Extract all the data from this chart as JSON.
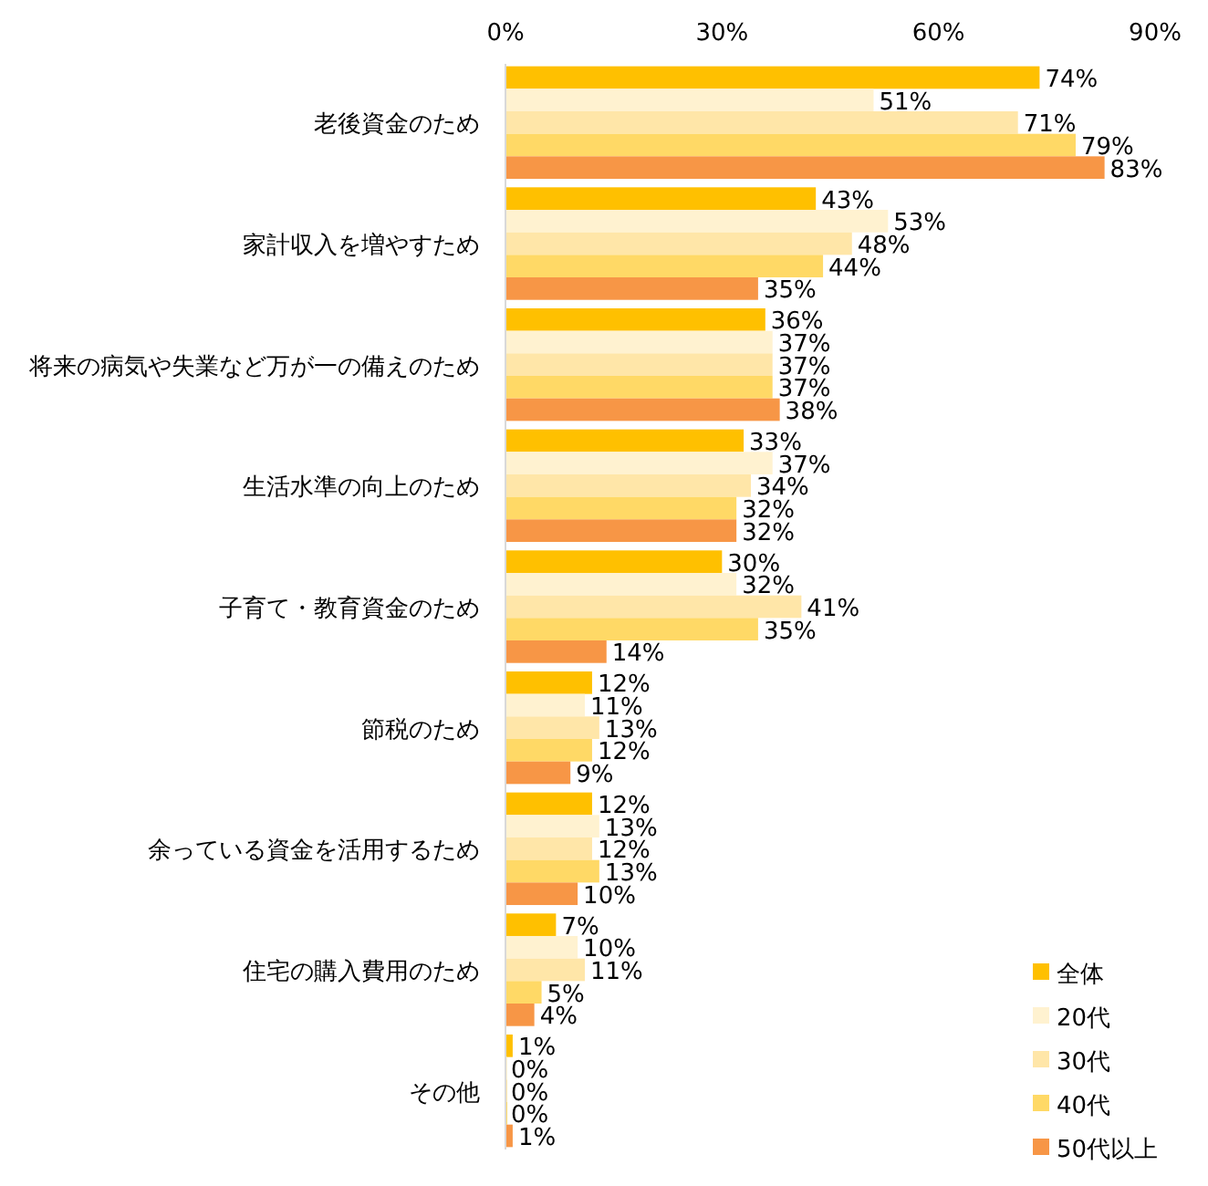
{
  "chart_data": {
    "type": "bar",
    "orientation": "horizontal",
    "categories": [
      "老後資金のため",
      "家計収入を増やすため",
      "将来の病気や失業など万が一の備えのため",
      "生活水準の向上のため",
      "子育て・教育資金のため",
      "節税のため",
      "余っている資金を活用するため",
      "住宅の購入費用のため",
      "その他"
    ],
    "series": [
      {
        "name": "全体",
        "color": "#ffc000",
        "values": [
          74,
          43,
          36,
          33,
          30,
          12,
          12,
          7,
          1
        ],
        "value_labels": [
          "74%",
          "43%",
          "36%",
          "33%",
          "30%",
          "12%",
          "12%",
          "7%",
          "1%"
        ]
      },
      {
        "name": "20代",
        "color": "#fff2d0",
        "values": [
          51,
          53,
          37,
          37,
          32,
          11,
          13,
          10,
          0
        ],
        "value_labels": [
          "51%",
          "53%",
          "37%",
          "37%",
          "32%",
          "11%",
          "13%",
          "10%",
          "0%"
        ]
      },
      {
        "name": "30代",
        "color": "#ffe6a8",
        "values": [
          71,
          48,
          37,
          34,
          41,
          13,
          12,
          11,
          0
        ],
        "value_labels": [
          "71%",
          "48%",
          "37%",
          "34%",
          "41%",
          "13%",
          "12%",
          "11%",
          "0%"
        ]
      },
      {
        "name": "40代",
        "color": "#ffd966",
        "values": [
          79,
          44,
          37,
          32,
          35,
          12,
          13,
          5,
          0
        ],
        "value_labels": [
          "79%",
          "44%",
          "37%",
          "32%",
          "35%",
          "12%",
          "13%",
          "5%",
          "0%"
        ]
      },
      {
        "name": "50代以上",
        "color": "#f79646",
        "values": [
          83,
          35,
          38,
          32,
          14,
          9,
          10,
          4,
          1
        ],
        "value_labels": [
          "83%",
          "35%",
          "38%",
          "32%",
          "14%",
          "9%",
          "10%",
          "4%",
          "1%"
        ]
      }
    ],
    "xlim": [
      0,
      90
    ],
    "xticks": [
      {
        "value": 0,
        "label": "0%"
      },
      {
        "value": 30,
        "label": "30%"
      },
      {
        "value": 60,
        "label": "60%"
      },
      {
        "value": 90,
        "label": "90%"
      }
    ],
    "grid": false,
    "legend": "bottom right"
  }
}
